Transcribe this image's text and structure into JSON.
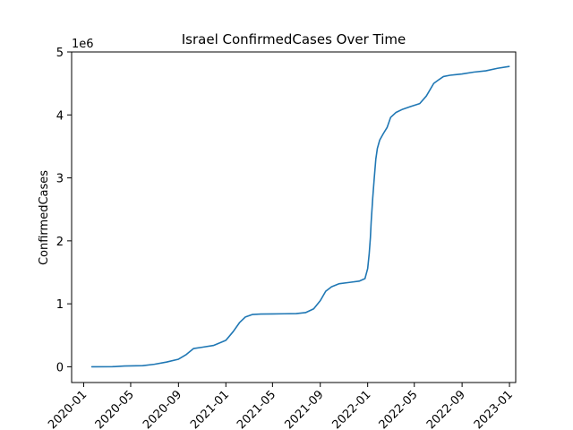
{
  "chart_data": {
    "type": "line",
    "title": "Israel  ConfirmedCases Over Time",
    "xlabel": "",
    "ylabel": "ConfirmedCases",
    "y_offset_label": "1e6",
    "x_range": [
      "2019-12-01",
      "2023-01-17"
    ],
    "ylim": [
      -250000,
      5000000
    ],
    "x_ticks": [
      {
        "date": "2020-01-01",
        "label": "2020-01"
      },
      {
        "date": "2020-05-01",
        "label": "2020-05"
      },
      {
        "date": "2020-09-01",
        "label": "2020-09"
      },
      {
        "date": "2021-01-01",
        "label": "2021-01"
      },
      {
        "date": "2021-05-01",
        "label": "2021-05"
      },
      {
        "date": "2021-09-01",
        "label": "2021-09"
      },
      {
        "date": "2022-01-01",
        "label": "2022-01"
      },
      {
        "date": "2022-05-01",
        "label": "2022-05"
      },
      {
        "date": "2022-09-01",
        "label": "2022-09"
      },
      {
        "date": "2023-01-01",
        "label": "2023-01"
      }
    ],
    "y_ticks": [
      {
        "value": 0,
        "label": "0"
      },
      {
        "value": 1000000,
        "label": "1"
      },
      {
        "value": 2000000,
        "label": "2"
      },
      {
        "value": 3000000,
        "label": "3"
      },
      {
        "value": 4000000,
        "label": "4"
      },
      {
        "value": 5000000,
        "label": "5"
      }
    ],
    "grid": false,
    "series": [
      {
        "color": "#1f77b4",
        "x": [
          "2020-01-22",
          "2020-03-15",
          "2020-04-15",
          "2020-06-01",
          "2020-07-01",
          "2020-08-01",
          "2020-09-01",
          "2020-09-20",
          "2020-10-10",
          "2020-11-01",
          "2020-12-01",
          "2021-01-01",
          "2021-01-20",
          "2021-02-05",
          "2021-02-20",
          "2021-03-10",
          "2021-04-01",
          "2021-05-01",
          "2021-06-01",
          "2021-07-01",
          "2021-07-25",
          "2021-08-15",
          "2021-09-01",
          "2021-09-15",
          "2021-09-30",
          "2021-10-20",
          "2021-11-15",
          "2021-12-10",
          "2021-12-25",
          "2022-01-01",
          "2022-01-05",
          "2022-01-08",
          "2022-01-10",
          "2022-01-14",
          "2022-01-18",
          "2022-01-22",
          "2022-01-26",
          "2022-02-01",
          "2022-02-10",
          "2022-02-20",
          "2022-03-01",
          "2022-03-15",
          "2022-04-01",
          "2022-04-20",
          "2022-05-15",
          "2022-06-01",
          "2022-06-20",
          "2022-07-01",
          "2022-07-15",
          "2022-08-01",
          "2022-09-01",
          "2022-10-01",
          "2022-11-01",
          "2022-12-01",
          "2022-12-31"
        ],
        "y": [
          0,
          1000,
          12000,
          18000,
          40000,
          75000,
          120000,
          190000,
          290000,
          310000,
          340000,
          420000,
          560000,
          700000,
          790000,
          830000,
          838000,
          840000,
          842000,
          845000,
          860000,
          920000,
          1050000,
          1200000,
          1270000,
          1320000,
          1340000,
          1360000,
          1400000,
          1560000,
          1800000,
          2050000,
          2300000,
          2680000,
          3000000,
          3300000,
          3470000,
          3600000,
          3700000,
          3800000,
          3960000,
          4040000,
          4090000,
          4130000,
          4180000,
          4300000,
          4500000,
          4550000,
          4610000,
          4630000,
          4650000,
          4680000,
          4700000,
          4740000,
          4770000
        ]
      }
    ]
  }
}
